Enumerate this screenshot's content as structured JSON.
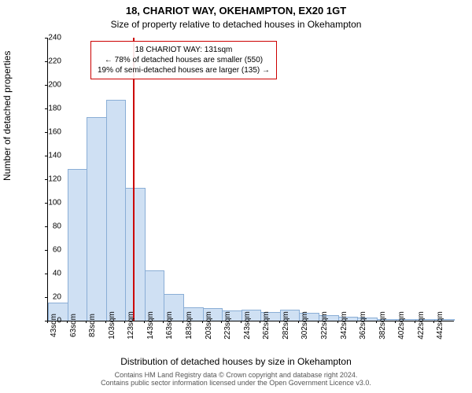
{
  "title_line1": "18, CHARIOT WAY, OKEHAMPTON, EX20 1GT",
  "title_line2": "Size of property relative to detached houses in Okehampton",
  "ylabel": "Number of detached properties",
  "xlabel": "Distribution of detached houses by size in Okehampton",
  "attribution_line1": "Contains HM Land Registry data © Crown copyright and database right 2024.",
  "attribution_line2": "Contains public sector information licensed under the Open Government Licence v3.0.",
  "chart": {
    "type": "histogram",
    "background_color": "#ffffff",
    "bar_fill": "#cfe0f3",
    "bar_stroke": "#8aaed6",
    "axis_color": "#000000",
    "refline_color": "#cc0000",
    "annot_border_color": "#cc0000",
    "title_fontsize": 13,
    "subtitle_fontsize": 12,
    "label_fontsize": 12,
    "tick_fontsize": 10,
    "attribution_fontsize": 9,
    "annot_fontsize": 10,
    "ylim": [
      0,
      240
    ],
    "ytick_step": 20,
    "xticks": [
      43,
      63,
      83,
      103,
      123,
      143,
      163,
      183,
      203,
      223,
      243,
      262,
      282,
      302,
      322,
      342,
      362,
      382,
      402,
      422,
      442
    ],
    "xtick_suffix": "sqm",
    "values": [
      15,
      128,
      172,
      187,
      112,
      42,
      22,
      11,
      10,
      8,
      9,
      7,
      9,
      6,
      4,
      3,
      2,
      1,
      1,
      1,
      1
    ],
    "refline_x": 131,
    "annot_line1": "18 CHARIOT WAY: 131sqm",
    "annot_line2": "← 78% of detached houses are smaller (550)",
    "annot_line3": "19% of semi-detached houses are larger (135) →"
  }
}
